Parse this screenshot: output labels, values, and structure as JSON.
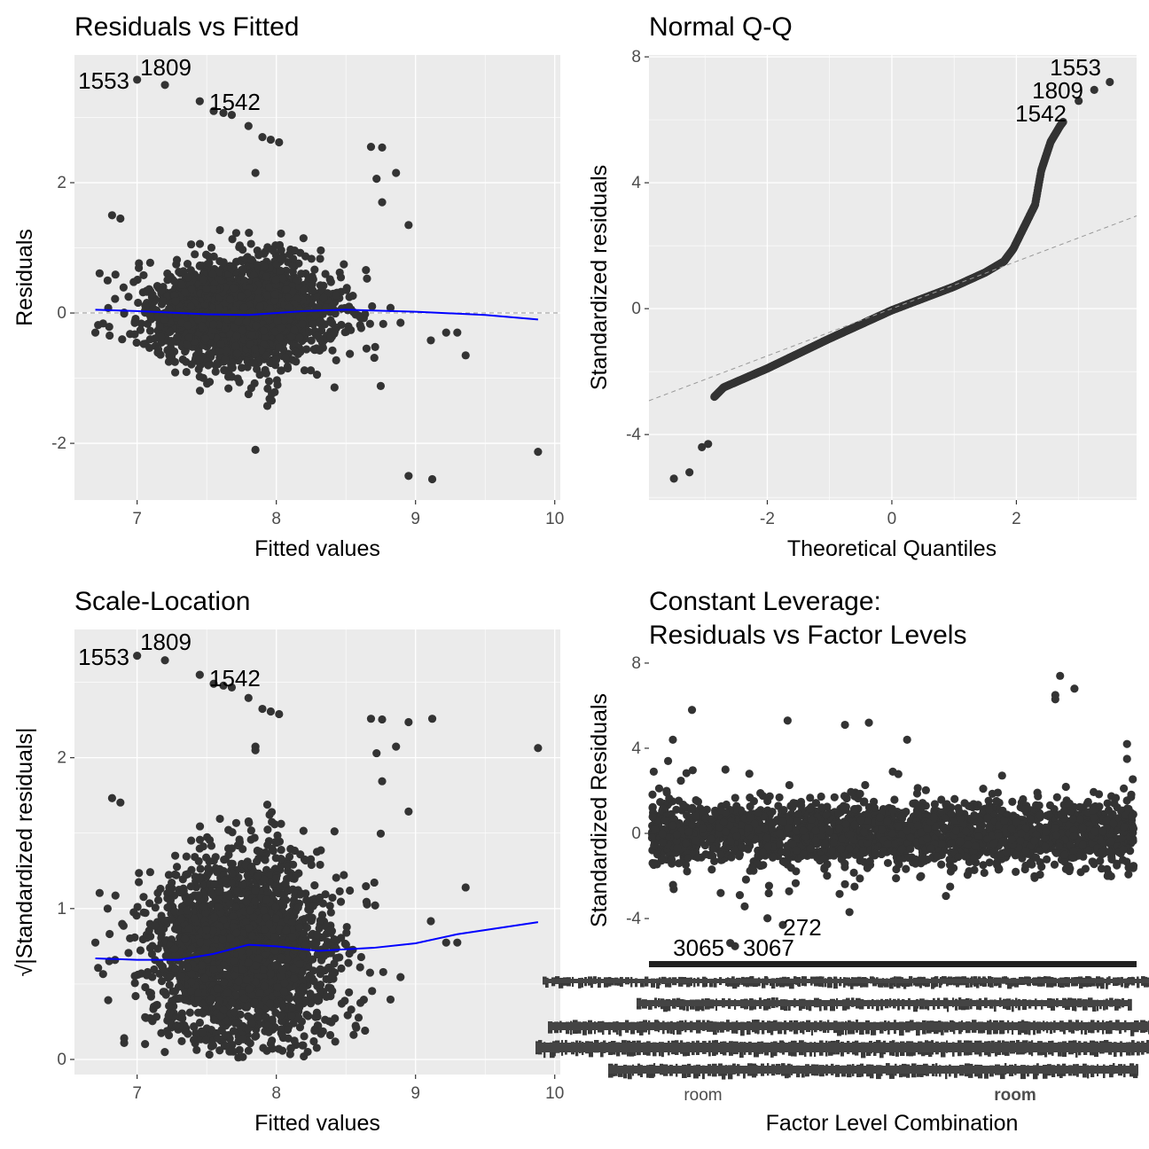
{
  "chart_data": [
    {
      "type": "scatter",
      "title": "Residuals vs Fitted",
      "xlabel": "Fitted values",
      "ylabel": "Residuals",
      "xlim": [
        6.55,
        10.04
      ],
      "ylim": [
        -2.87,
        3.96
      ],
      "xticks": [
        "7",
        "8",
        "9",
        "10"
      ],
      "yticks": [
        "-2",
        "0",
        "2"
      ],
      "grid": true,
      "reference_line": {
        "y": 0,
        "style": "dashed",
        "color": "#999999"
      },
      "smooth_color": "#0000ff",
      "point_color": "#333333",
      "smooth": [
        [
          6.7,
          0.05
        ],
        [
          7.0,
          0.03
        ],
        [
          7.5,
          -0.02
        ],
        [
          7.8,
          -0.03
        ],
        [
          8.2,
          0.03
        ],
        [
          8.5,
          0.05
        ],
        [
          9.0,
          0.02
        ],
        [
          9.5,
          -0.03
        ],
        [
          9.88,
          -0.1
        ]
      ],
      "labeled_points": [
        {
          "label": "1553",
          "x": 7.0,
          "y": 3.58
        },
        {
          "label": "1809",
          "x": 7.2,
          "y": 3.5
        },
        {
          "label": "1542",
          "x": 7.45,
          "y": 3.25
        }
      ],
      "outlying_points": [
        [
          7.55,
          3.1
        ],
        [
          7.62,
          3.07
        ],
        [
          7.68,
          3.04
        ],
        [
          7.8,
          2.87
        ],
        [
          7.9,
          2.7
        ],
        [
          7.96,
          2.66
        ],
        [
          8.02,
          2.62
        ],
        [
          7.85,
          2.15
        ],
        [
          8.68,
          2.55
        ],
        [
          8.76,
          2.54
        ],
        [
          8.86,
          2.15
        ],
        [
          8.72,
          2.06
        ],
        [
          8.76,
          1.7
        ],
        [
          8.95,
          1.35
        ],
        [
          6.82,
          1.5
        ],
        [
          6.88,
          1.45
        ],
        [
          7.85,
          -2.1
        ],
        [
          8.95,
          -2.5
        ],
        [
          9.12,
          -2.55
        ],
        [
          9.88,
          -2.13
        ],
        [
          9.36,
          -0.65
        ],
        [
          9.22,
          -0.3
        ],
        [
          9.3,
          -0.3
        ],
        [
          9.11,
          -0.42
        ],
        [
          6.7,
          -0.3
        ],
        [
          8.75,
          -1.12
        ]
      ]
    },
    {
      "type": "scatter",
      "title": "Normal Q-Q",
      "xlabel": "Theoretical Quantiles",
      "ylabel": "Standardized residuals",
      "xlim": [
        -3.9,
        3.93
      ],
      "ylim": [
        -6.08,
        8.06
      ],
      "xticks": [
        "-2",
        "0",
        "2"
      ],
      "yticks": [
        "-4",
        "0",
        "4",
        "8"
      ],
      "grid": true,
      "reference_line": {
        "intercept": 0,
        "slope": 0.75,
        "style": "dashed",
        "color": "#999999"
      },
      "qq_curve": [
        [
          -3.5,
          -5.4
        ],
        [
          -3.25,
          -5.2
        ],
        [
          -3.05,
          -4.4
        ],
        [
          -2.95,
          -4.3
        ],
        [
          -2.9,
          -2.9
        ],
        [
          -2.7,
          -2.5
        ],
        [
          -2.0,
          -1.9
        ],
        [
          -1.0,
          -0.95
        ],
        [
          0,
          -0.05
        ],
        [
          1.0,
          0.7
        ],
        [
          1.5,
          1.15
        ],
        [
          1.8,
          1.5
        ],
        [
          1.95,
          1.9
        ],
        [
          2.1,
          2.5
        ],
        [
          2.3,
          3.3
        ],
        [
          2.4,
          4.4
        ],
        [
          2.55,
          5.3
        ],
        [
          2.7,
          5.8
        ],
        [
          2.85,
          6.2
        ],
        [
          3.1,
          6.6
        ],
        [
          3.3,
          6.9
        ],
        [
          3.5,
          7.2
        ]
      ],
      "labeled_points": [
        {
          "label": "1553",
          "x": 3.5,
          "y": 7.2
        },
        {
          "label": "1809",
          "x": 3.25,
          "y": 6.95
        },
        {
          "label": "1542",
          "x": 3.0,
          "y": 6.55
        }
      ]
    },
    {
      "type": "scatter",
      "title": "Scale-Location",
      "xlabel": "Fitted values",
      "ylabel": "√|Standardized residuals|",
      "xlim": [
        6.55,
        10.04
      ],
      "ylim": [
        -0.1,
        2.85
      ],
      "xticks": [
        "7",
        "8",
        "9",
        "10"
      ],
      "yticks": [
        "0",
        "1",
        "2"
      ],
      "grid": true,
      "smooth_color": "#0000ff",
      "smooth": [
        [
          6.7,
          0.67
        ],
        [
          7.0,
          0.66
        ],
        [
          7.3,
          0.66
        ],
        [
          7.55,
          0.7
        ],
        [
          7.8,
          0.76
        ],
        [
          8.0,
          0.75
        ],
        [
          8.3,
          0.72
        ],
        [
          8.7,
          0.74
        ],
        [
          9.0,
          0.77
        ],
        [
          9.3,
          0.83
        ],
        [
          9.88,
          0.91
        ]
      ],
      "labeled_points": [
        {
          "label": "1553",
          "x": 7.0,
          "y": 2.68
        },
        {
          "label": "1809",
          "x": 7.2,
          "y": 2.65
        },
        {
          "label": "1542",
          "x": 7.45,
          "y": 2.55
        }
      ]
    },
    {
      "type": "scatter",
      "title": "Constant Leverage:\nResiduals vs Factor Levels",
      "title_lines": [
        "Constant Leverage:",
        "Residuals vs Factor Levels"
      ],
      "xlabel": "Factor Level Combination",
      "ylabel": "Standardized Residuals",
      "ylim": [
        -5.83,
        8.33
      ],
      "yticks": [
        "-4",
        "0",
        "4",
        "8"
      ],
      "xtick_labels_visible": [
        "room",
        "room"
      ],
      "grid": false,
      "reference_line": {
        "y": 0,
        "style": "dashed",
        "color": "#999999"
      },
      "labeled_points": [
        {
          "label": "272",
          "level_index": 27,
          "y": -4.3
        },
        {
          "label": "3065",
          "level_index": 16,
          "y": -5.15
        },
        {
          "label": "3067",
          "level_index": 17,
          "y": -5.3
        }
      ],
      "outlying_points": [
        [
          0,
          2.9
        ],
        [
          4,
          4.4
        ],
        [
          3,
          3.4
        ],
        [
          8,
          5.8
        ],
        [
          15,
          3.0
        ],
        [
          20,
          2.8
        ],
        [
          28,
          5.3
        ],
        [
          40,
          5.1
        ],
        [
          45,
          5.2
        ],
        [
          53,
          4.4
        ],
        [
          50,
          2.9
        ],
        [
          85,
          7.4
        ],
        [
          84,
          6.5
        ],
        [
          84,
          6.3
        ],
        [
          88,
          6.8
        ],
        [
          99,
          4.2
        ],
        [
          99,
          3.5
        ],
        [
          18,
          -2.9
        ],
        [
          14,
          -2.8
        ],
        [
          42,
          -2.5
        ],
        [
          62,
          -2.5
        ]
      ]
    }
  ]
}
